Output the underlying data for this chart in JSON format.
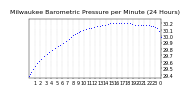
{
  "title": "Milwaukee Barometric Pressure per Minute (24 Hours)",
  "background_color": "#ffffff",
  "dot_color": "#0000ff",
  "grid_color": "#b0b0b0",
  "xlim": [
    0,
    1440
  ],
  "ylim": [
    29.35,
    30.27
  ],
  "yticks": [
    29.4,
    29.5,
    29.6,
    29.7,
    29.8,
    29.9,
    30.0,
    30.1,
    30.2
  ],
  "xtick_labels": [
    "1",
    "2",
    "3",
    "4",
    "5",
    "6",
    "7",
    "8",
    "9",
    "10",
    "11",
    "12",
    "13",
    "14",
    "15",
    "16",
    "17",
    "18",
    "19",
    "20",
    "21",
    "22",
    "23",
    "0"
  ],
  "xtick_positions": [
    60,
    120,
    180,
    240,
    300,
    360,
    420,
    480,
    540,
    600,
    660,
    720,
    780,
    840,
    900,
    960,
    1020,
    1080,
    1140,
    1200,
    1260,
    1320,
    1380,
    1440
  ],
  "vgrid_positions": [
    60,
    120,
    180,
    240,
    300,
    360,
    420,
    480,
    540,
    600,
    660,
    720,
    780,
    840,
    900,
    960,
    1020,
    1080,
    1140,
    1200,
    1260,
    1320,
    1380,
    1440
  ],
  "title_fontsize": 4.5,
  "tick_fontsize": 3.5,
  "data_x": [
    1,
    10,
    20,
    40,
    60,
    80,
    100,
    130,
    160,
    190,
    220,
    250,
    280,
    310,
    340,
    370,
    400,
    430,
    460,
    480,
    500,
    520,
    540,
    560,
    590,
    620,
    650,
    680,
    710,
    740,
    770,
    800,
    830,
    860,
    890,
    920,
    950,
    980,
    1010,
    1040,
    1070,
    1100,
    1130,
    1160,
    1190,
    1220,
    1250,
    1280,
    1310,
    1340,
    1360,
    1380,
    1400,
    1420,
    1440
  ],
  "data_y": [
    29.38,
    29.41,
    29.44,
    29.49,
    29.54,
    29.58,
    29.61,
    29.65,
    29.69,
    29.72,
    29.75,
    29.78,
    29.81,
    29.84,
    29.86,
    29.89,
    29.92,
    29.95,
    29.98,
    30.01,
    30.03,
    30.05,
    30.06,
    30.08,
    30.1,
    30.11,
    30.12,
    30.13,
    30.14,
    30.15,
    30.16,
    30.17,
    30.18,
    30.19,
    30.2,
    30.2,
    30.21,
    30.21,
    30.21,
    30.2,
    30.2,
    30.2,
    30.19,
    30.18,
    30.17,
    30.17,
    30.18,
    30.18,
    30.17,
    30.15,
    30.16,
    30.14,
    30.12,
    30.08,
    29.98
  ]
}
